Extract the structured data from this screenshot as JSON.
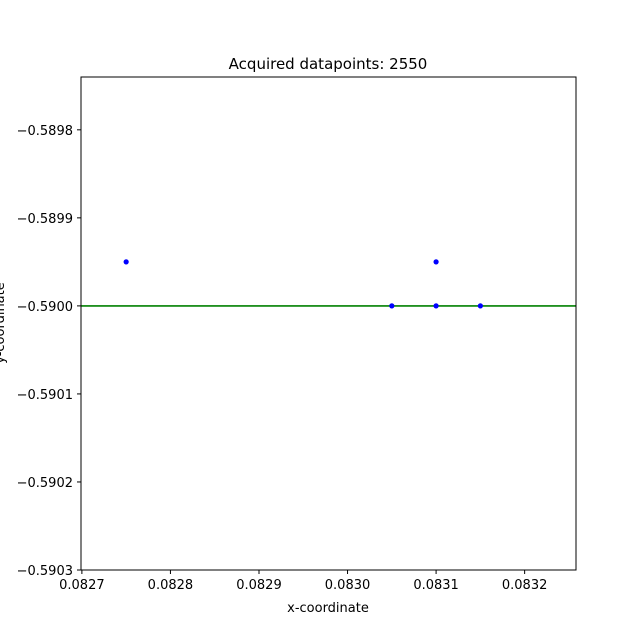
{
  "chart_data": {
    "type": "scatter",
    "title": "Acquired datapoints: 2550",
    "xlabel": "x-coordinate",
    "ylabel": "y-coordinate",
    "xlim": [
      0.082699,
      0.083258
    ],
    "ylim": [
      -0.5903,
      -0.58974
    ],
    "xticks": [
      0.0827,
      0.0828,
      0.0829,
      0.083,
      0.0831,
      0.0832
    ],
    "xtick_labels": [
      "0.0827",
      "0.0828",
      "0.0829",
      "0.0830",
      "0.0831",
      "0.0832"
    ],
    "yticks": [
      -0.5898,
      -0.5899,
      -0.59,
      -0.5901,
      -0.5902,
      -0.5903
    ],
    "ytick_labels": [
      "−0.5898",
      "−0.5899",
      "−0.5900",
      "−0.5901",
      "−0.5902",
      "−0.5903"
    ],
    "grid": false,
    "series": [
      {
        "color": "#0000ff",
        "marker": "dot",
        "points": [
          {
            "x": 0.08275,
            "y": -0.58995
          },
          {
            "x": 0.08305,
            "y": -0.59
          },
          {
            "x": 0.0831,
            "y": -0.58995
          },
          {
            "x": 0.0831,
            "y": -0.59
          },
          {
            "x": 0.08315,
            "y": -0.59
          }
        ]
      }
    ],
    "reference_line": {
      "orientation": "horizontal",
      "y": -0.59,
      "color": "#008000"
    }
  }
}
